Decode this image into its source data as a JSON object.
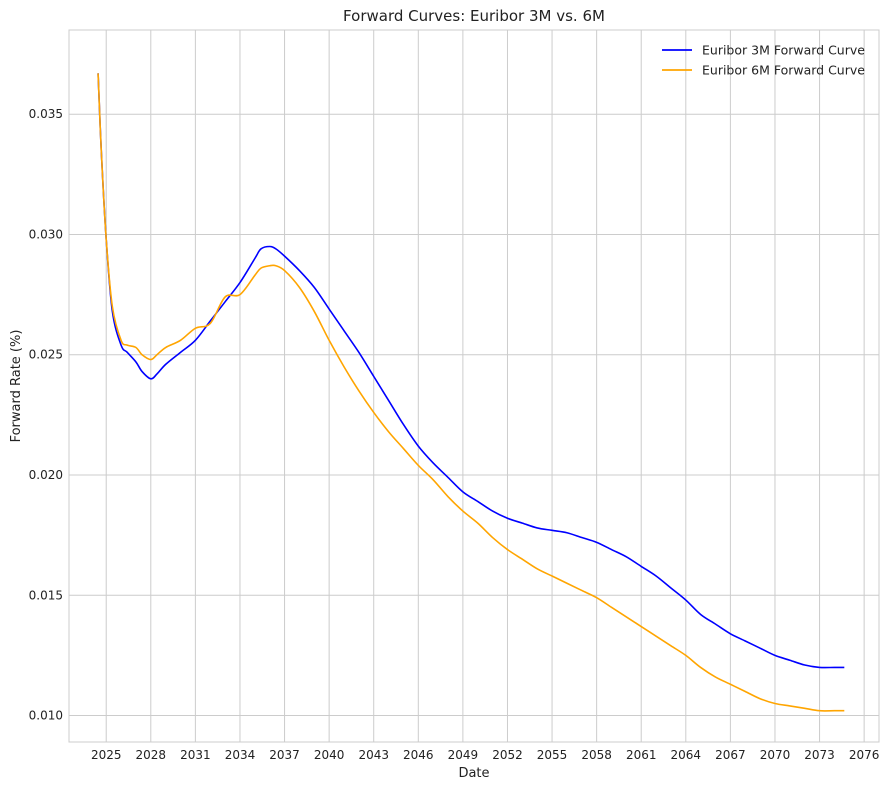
{
  "chart_data": {
    "type": "line",
    "title": "Forward Curves: Euribor 3M vs. 6M",
    "xlabel": "Date",
    "ylabel": "Forward Rate (%)",
    "xlim": [
      "2022-07-01",
      "2077-01-01"
    ],
    "ylim": [
      0.0089,
      0.0385
    ],
    "grid": true,
    "legend_position": "top-right",
    "x_ticks": [
      "2025",
      "2028",
      "2031",
      "2034",
      "2037",
      "2040",
      "2043",
      "2046",
      "2049",
      "2052",
      "2055",
      "2058",
      "2061",
      "2064",
      "2067",
      "2070",
      "2073",
      "2076"
    ],
    "y_ticks": [
      "0.010",
      "0.015",
      "0.020",
      "0.025",
      "0.030",
      "0.035"
    ],
    "x": [
      "2024-06-15",
      "2024-09-01",
      "2025-01-01",
      "2025-06-01",
      "2026-01-01",
      "2026-06-01",
      "2027-01-01",
      "2027-06-01",
      "2028-01-01",
      "2028-06-01",
      "2029-01-01",
      "2030-01-01",
      "2031-01-01",
      "2032-01-01",
      "2033-01-01",
      "2034-01-01",
      "2035-01-01",
      "2035-06-01",
      "2036-01-01",
      "2036-06-01",
      "2037-01-01",
      "2038-01-01",
      "2039-01-01",
      "2040-01-01",
      "2041-01-01",
      "2042-01-01",
      "2043-01-01",
      "2044-01-01",
      "2045-01-01",
      "2046-01-01",
      "2047-01-01",
      "2048-01-01",
      "2049-01-01",
      "2050-01-01",
      "2051-01-01",
      "2052-01-01",
      "2053-01-01",
      "2054-01-01",
      "2055-01-01",
      "2056-01-01",
      "2057-01-01",
      "2058-01-01",
      "2059-01-01",
      "2060-01-01",
      "2061-01-01",
      "2062-01-01",
      "2063-01-01",
      "2064-01-01",
      "2065-01-01",
      "2066-01-01",
      "2067-01-01",
      "2068-01-01",
      "2069-01-01",
      "2070-01-01",
      "2071-01-01",
      "2072-01-01",
      "2073-01-01",
      "2074-01-01",
      "2074-09-01"
    ],
    "series": [
      {
        "name": "Euribor 3M Forward Curve",
        "color": "#0000ff",
        "values": [
          0.0367,
          0.0335,
          0.0298,
          0.0268,
          0.0254,
          0.0251,
          0.0247,
          0.0243,
          0.024,
          0.0242,
          0.0246,
          0.0251,
          0.0256,
          0.0264,
          0.0272,
          0.028,
          0.029,
          0.0294,
          0.0295,
          0.0294,
          0.0291,
          0.0285,
          0.0278,
          0.0269,
          0.026,
          0.0251,
          0.0241,
          0.0231,
          0.0221,
          0.0212,
          0.0205,
          0.0199,
          0.0193,
          0.0189,
          0.0185,
          0.0182,
          0.018,
          0.0178,
          0.0177,
          0.0176,
          0.0174,
          0.0172,
          0.0169,
          0.0166,
          0.0162,
          0.0158,
          0.0153,
          0.0148,
          0.0142,
          0.0138,
          0.0134,
          0.0131,
          0.0128,
          0.0125,
          0.0123,
          0.0121,
          0.012,
          0.012,
          0.012
        ]
      },
      {
        "name": "Euribor 6M Forward Curve",
        "color": "#ffa500",
        "values": [
          0.0367,
          0.0335,
          0.0298,
          0.027,
          0.0256,
          0.0254,
          0.0253,
          0.025,
          0.0248,
          0.025,
          0.0253,
          0.0256,
          0.0261,
          0.0263,
          0.0274,
          0.0275,
          0.0283,
          0.0286,
          0.0287,
          0.0287,
          0.0285,
          0.0278,
          0.0268,
          0.0256,
          0.0245,
          0.0235,
          0.0226,
          0.0218,
          0.0211,
          0.0204,
          0.0198,
          0.0191,
          0.0185,
          0.018,
          0.0174,
          0.0169,
          0.0165,
          0.0161,
          0.0158,
          0.0155,
          0.0152,
          0.0149,
          0.0145,
          0.0141,
          0.0137,
          0.0133,
          0.0129,
          0.0125,
          0.012,
          0.0116,
          0.0113,
          0.011,
          0.0107,
          0.0105,
          0.0104,
          0.0103,
          0.0102,
          0.0102,
          0.0102
        ]
      }
    ]
  }
}
